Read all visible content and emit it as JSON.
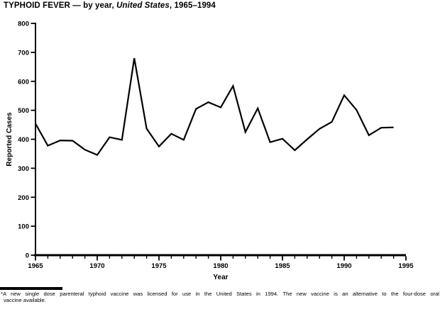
{
  "header": {
    "title_pre": "TYPHOID FEVER — by year, ",
    "title_italic": "United States",
    "title_post": ", 1965–1994"
  },
  "chart_data": {
    "type": "line",
    "title": "TYPHOID FEVER — by year, United States, 1965–1994",
    "xlabel": "Year",
    "ylabel": "Reported Cases",
    "x": [
      1965,
      1966,
      1967,
      1968,
      1969,
      1970,
      1971,
      1972,
      1973,
      1974,
      1975,
      1976,
      1977,
      1978,
      1979,
      1980,
      1981,
      1982,
      1983,
      1984,
      1985,
      1986,
      1987,
      1988,
      1989,
      1990,
      1991,
      1992,
      1993,
      1994
    ],
    "values": [
      454,
      378,
      396,
      395,
      364,
      346,
      407,
      398,
      680,
      437,
      375,
      419,
      398,
      505,
      528,
      510,
      584,
      425,
      507,
      390,
      402,
      362,
      400,
      436,
      460,
      552,
      501,
      414,
      440,
      441
    ],
    "xlim": [
      1965,
      1995
    ],
    "ylim": [
      0,
      800
    ],
    "ytick_interval": 100,
    "xtick_minor_interval": 1,
    "xtick_label_interval": 5,
    "ytick_labels": [
      "0",
      "100",
      "200",
      "300",
      "400",
      "500",
      "600",
      "700",
      "800"
    ],
    "xtick_labels": [
      "1965",
      "1970",
      "1975",
      "1980",
      "1985",
      "1990",
      "1995"
    ],
    "grid": false,
    "legend": "none",
    "line_color": "#000000",
    "background_color": "#ffffff"
  },
  "footnote": {
    "marker": "*",
    "line1": "A new single dose parenteral typhoid vaccine was licensed for use in the United States in 1994. The new vaccine is an alternative to the four-dose oral",
    "line2": "vaccine available."
  }
}
